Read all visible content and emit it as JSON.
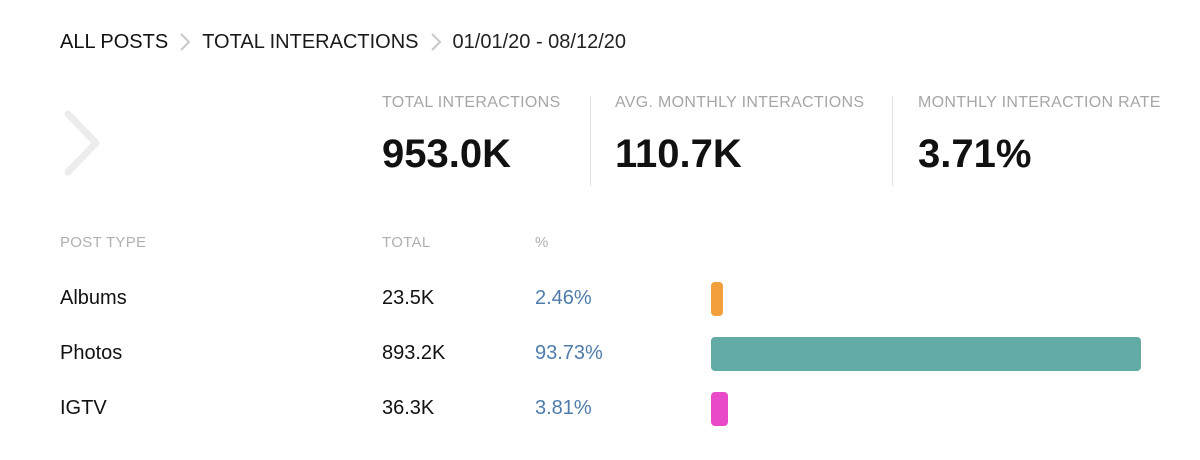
{
  "breadcrumb": {
    "all_posts": "ALL POSTS",
    "metric": "TOTAL INTERACTIONS",
    "date_range": "01/01/20 - 08/12/20"
  },
  "stats": [
    {
      "label": "TOTAL INTERACTIONS",
      "value": "953.0K"
    },
    {
      "label": "AVG. MONTHLY INTERACTIONS",
      "value": "110.7K"
    },
    {
      "label": "MONTHLY INTERACTION RATE",
      "value": "3.71%"
    }
  ],
  "table": {
    "headers": {
      "type": "POST TYPE",
      "total": "TOTAL",
      "pct": "%"
    },
    "rows": [
      {
        "type": "Albums",
        "total": "23.5K",
        "pct": "2.46%",
        "share": 2.46,
        "color": "#f2a03d"
      },
      {
        "type": "Photos",
        "total": "893.2K",
        "pct": "93.73%",
        "share": 93.73,
        "color": "#63aca6"
      },
      {
        "type": "IGTV",
        "total": "36.3K",
        "pct": "3.81%",
        "share": 3.81,
        "color": "#e84ac8"
      }
    ]
  },
  "icons": {
    "breadcrumb_separator": "chevron-right-icon",
    "nav": "chevron-right-icon"
  }
}
